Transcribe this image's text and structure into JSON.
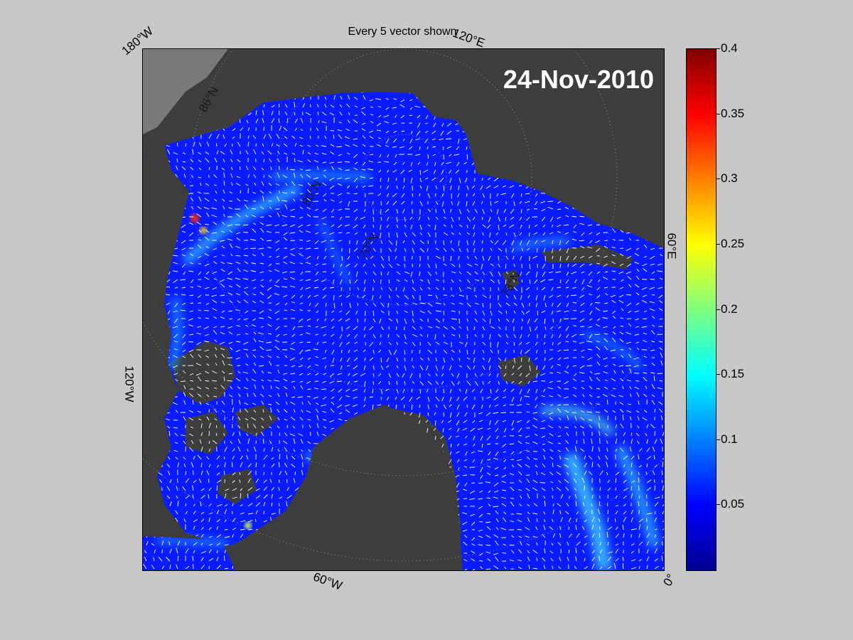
{
  "title": "Every 5 vector shown",
  "date": "24-Nov-2010",
  "longitude_labels": {
    "w180": "180°W",
    "e120": "120°E",
    "e60": "60°E",
    "w120": "120°W",
    "w60": "60°W",
    "zero": "0°"
  },
  "latitude_labels": [
    "86°N",
    "80°N",
    "70°N",
    "78°N"
  ],
  "colorbar": {
    "colormap": "jet",
    "min": 0,
    "max": 0.4,
    "ticks": [
      "0.4",
      "0.35",
      "0.3",
      "0.25",
      "0.2",
      "0.15",
      "0.1",
      "0.05"
    ]
  },
  "colors": {
    "land": "#3d3d3d",
    "ocean_background": "#0a1cff",
    "vectors": "#ffffff",
    "figure_background": "#c8c8c8"
  }
}
